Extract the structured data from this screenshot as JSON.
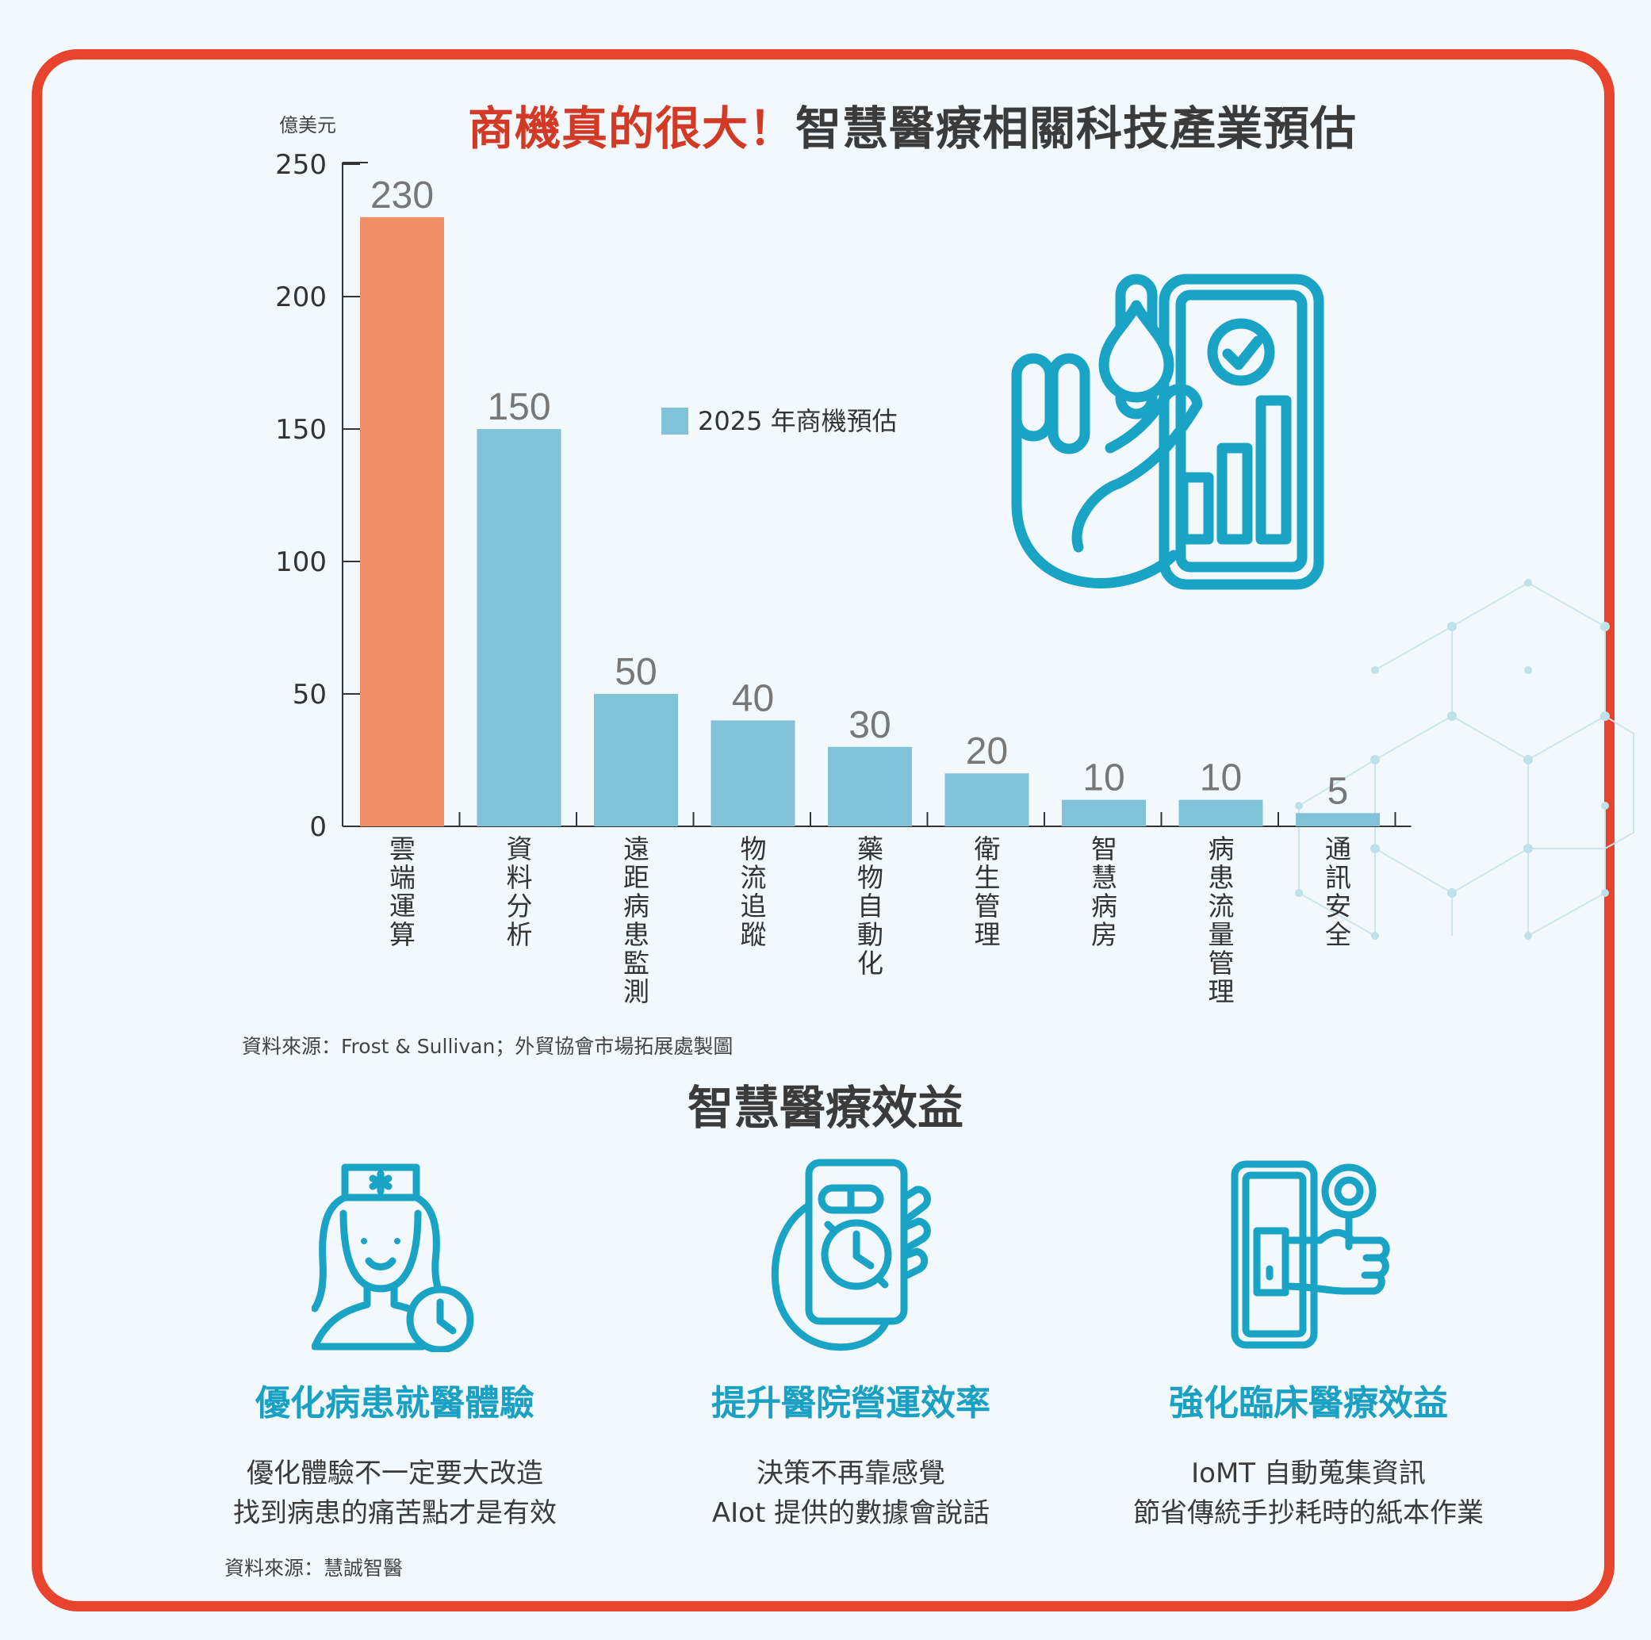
{
  "title": {
    "part1": "商機真的很大！",
    "part2": "智慧醫療相關科技產業預估"
  },
  "chart_data": {
    "type": "bar",
    "title": "商機真的很大！智慧醫療相關科技產業預估",
    "ylabel": "億美元",
    "ylim": [
      0,
      250
    ],
    "yticks": [
      0,
      50,
      100,
      150,
      200,
      250
    ],
    "categories": [
      "雲端運算",
      "資料分析",
      "遠距病患監測",
      "物流追蹤",
      "藥物自動化",
      "衛生管理",
      "智慧病房",
      "病患流量管理",
      "通訊安全"
    ],
    "series": [
      {
        "name": "2025 年商機預估",
        "values": [
          230,
          150,
          50,
          40,
          30,
          20,
          10,
          10,
          5
        ]
      }
    ],
    "highlight_index": 0,
    "colors": {
      "highlight": "#f08e68",
      "bar": "#80c3d8",
      "axis": "#333333",
      "label": "#777777"
    },
    "legend_position": "upper-middle"
  },
  "source_chart": "資料來源：Frost & Sullivan；外貿協會市場拓展處製圖",
  "benefits_title": "智慧醫療效益",
  "benefits": [
    {
      "icon": "nurse-clock-icon",
      "title": "優化病患就醫體驗",
      "lines": [
        "優化體驗不一定要大改造",
        "找到病患的痛苦點才是有效"
      ]
    },
    {
      "icon": "phone-clock-icon",
      "title": "提升醫院營運效率",
      "lines": [
        "決策不再靠感覺",
        "AIot 提供的數據會說話"
      ]
    },
    {
      "icon": "tablet-hand-icon",
      "title": "強化臨床醫療效益",
      "lines": [
        "IoMT 自動蒐集資訊",
        "節省傳統手抄耗時的紙本作業"
      ]
    }
  ],
  "source_benefits": "資料來源：慧誠智醫",
  "colors": {
    "frame": "#e8432c",
    "accent": "#1aa0c2",
    "icon_stroke": "#19a3c5",
    "background": "#f3f8fc"
  }
}
